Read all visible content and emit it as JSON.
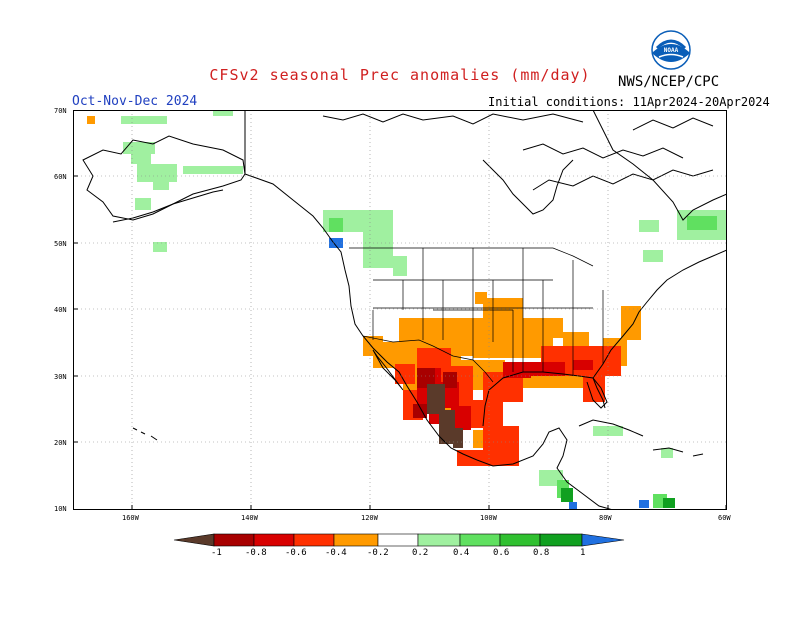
{
  "header": {
    "title": "CFSv2 seasonal Prec anomalies (mm/day)",
    "agency": "NWS/NCEP/CPC",
    "season": "Oct-Nov-Dec 2024",
    "initial_conditions": "Initial conditions: 11Apr2024-20Apr2024"
  },
  "map": {
    "lat_labels": [
      "70N",
      "60N",
      "50N",
      "40N",
      "30N",
      "20N",
      "10N"
    ],
    "lon_labels": [
      "160W",
      "140W",
      "120W",
      "100W",
      "80W",
      "60W"
    ],
    "lon_range": [
      -170,
      -60
    ],
    "lat_range": [
      10,
      70
    ]
  },
  "colorbar": {
    "labels": [
      "-1",
      "-0.8",
      "-0.6",
      "-0.4",
      "-0.2",
      "0.2",
      "0.4",
      "0.6",
      "0.8",
      "1"
    ],
    "colors": [
      "#5a3a2a",
      "#a80000",
      "#d80000",
      "#ff3000",
      "#ff9a00",
      "#ffffff",
      "#a0f0a0",
      "#60e060",
      "#30c030",
      "#10a020",
      "#2070e0"
    ]
  },
  "colors": {
    "title": "#d02020",
    "season": "#2040c0",
    "noaa_blue": "#0a5eb8"
  }
}
